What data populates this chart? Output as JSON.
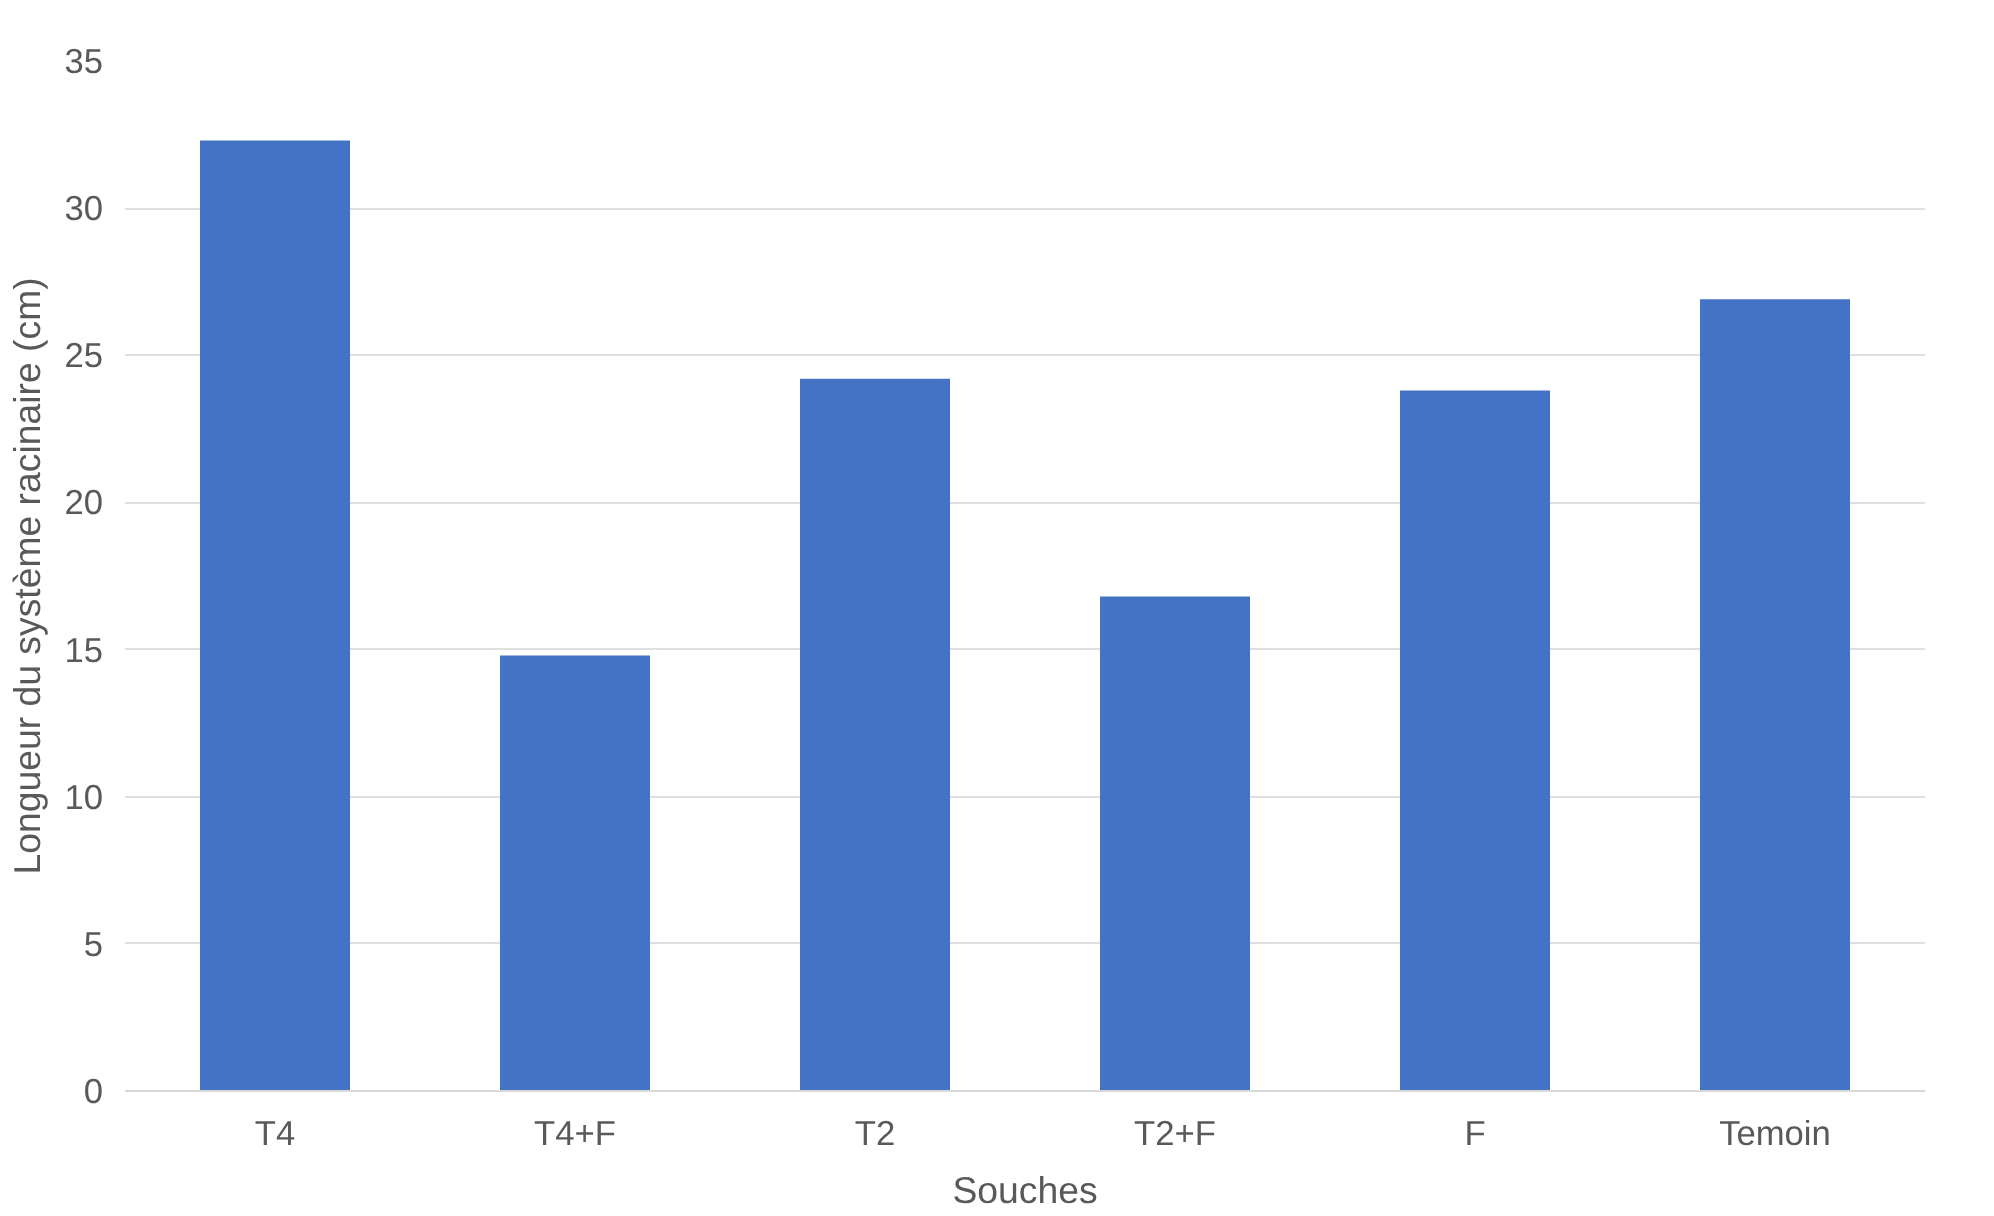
{
  "chart_data": {
    "type": "bar",
    "xlabel": "Souches",
    "ylabel": "Longueur du système racinaire (cm)",
    "categories": [
      "T4",
      "T4+F",
      "T2",
      "T2+F",
      "F",
      "Temoin"
    ],
    "values": [
      32.3,
      14.8,
      24.2,
      16.8,
      23.8,
      26.9
    ],
    "color": "#4472c4",
    "ylim": [
      0,
      35
    ],
    "yticks": [
      0,
      5,
      10,
      15,
      20,
      25,
      30,
      35
    ],
    "grid": "y"
  }
}
